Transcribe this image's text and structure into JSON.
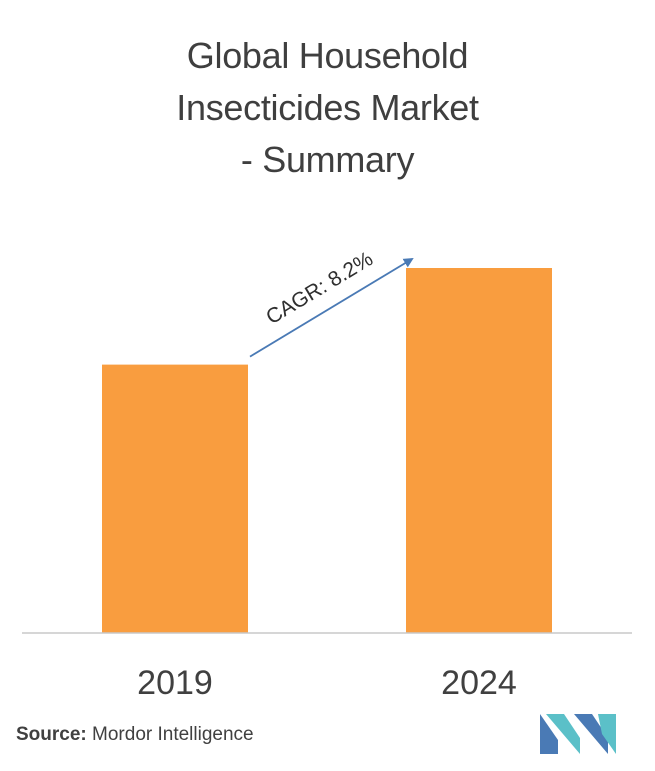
{
  "title_lines": [
    "Global Household",
    "Insecticides Market",
    "- Summary"
  ],
  "chart_data": {
    "type": "bar",
    "categories": [
      "2019",
      "2024"
    ],
    "values": [
      100,
      136
    ],
    "value_note": "relative bar heights, no values labeled",
    "annotation": "CAGR: 8.2%",
    "colors": {
      "bar": "#F99D3F",
      "arrow": "#4A7AB5",
      "axis": "#C8C8C8"
    }
  },
  "source": {
    "label": "Source:",
    "text": "Mordor Intelligence"
  },
  "logo": {
    "name": "mordor-intelligence-logo",
    "colors": [
      "#4A7AB5",
      "#5BC0C8"
    ]
  }
}
